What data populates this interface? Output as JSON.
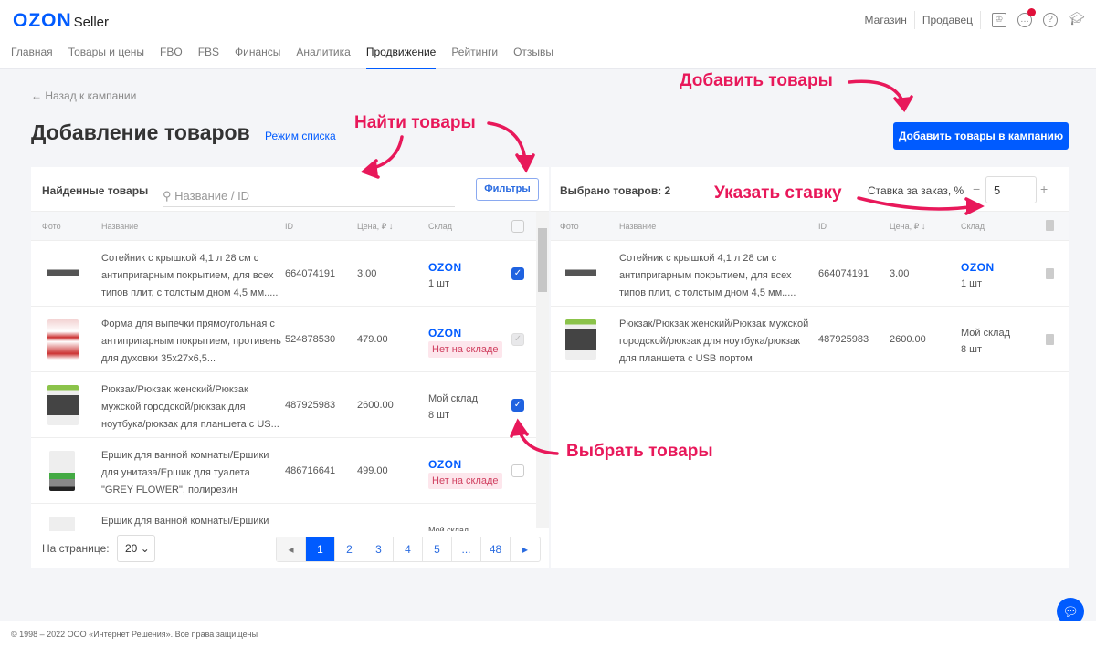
{
  "header": {
    "logo": "OZON",
    "logo_sub": "Seller",
    "nav": [
      "Главная",
      "Товары и цены",
      "FBO",
      "FBS",
      "Финансы",
      "Аналитика",
      "Продвижение",
      "Рейтинги",
      "Отзывы"
    ],
    "active_nav": "Продвижение",
    "links": [
      "Магазин",
      "Продавец"
    ],
    "icons": [
      "crown-icon",
      "chat-icon",
      "help-icon",
      "graduation-cap-icon"
    ]
  },
  "page": {
    "back": "← Назад к кампании",
    "title": "Добавление товаров",
    "mode": "Режим списка",
    "add_button": "Добавить товары в кампанию"
  },
  "annotations": {
    "add": "Добавить товары",
    "find": "Найти товары",
    "rate": "Указать ставку",
    "select": "Выбрать товары",
    "color": "#e8185a"
  },
  "left": {
    "title": "Найденные товары",
    "search_placeholder": "Название / ID",
    "filters": "Фильтры",
    "columns": [
      "Фото",
      "Название",
      "ID",
      "Цена, ₽ ↓",
      "Склад"
    ],
    "rows": [
      {
        "name": "Сотейник с крышкой 4,1 л 28 см с антипригарным покрытием, для всех типов плит, с толстым дном 4,5 мм.....",
        "id": "664074191",
        "price": "3.00",
        "wh": "OZON",
        "stock": "1 шт",
        "checked": true
      },
      {
        "name": "Форма для выпечки прямоугольная с антипригарным покрытием, противень для духовки 35x27x6,5...",
        "id": "524878530",
        "price": "479.00",
        "wh": "OZON",
        "stock": "Нет на складе",
        "checked": "disabled"
      },
      {
        "name": "Рюкзак/Рюкзак женский/Рюкзак мужской городской/рюкзак для ноутбука/рюкзак для планшета с US...",
        "id": "487925983",
        "price": "2600.00",
        "wh": "Мой склад",
        "stock": "8 шт",
        "checked": true
      },
      {
        "name": "Ершик для ванной комнаты/Ершики для унитаза/Ершик для туалета \"GREY FLOWER\", полирезин",
        "id": "486716641",
        "price": "499.00",
        "wh": "OZON",
        "stock": "Нет на складе",
        "checked": false
      },
      {
        "name": "Ершик для ванной комнаты/Ершики",
        "wh": "Мой склад"
      }
    ],
    "per_page_label": "На странице:",
    "per_page": "20",
    "pages": [
      "1",
      "2",
      "3",
      "4",
      "5",
      "...",
      "48"
    ],
    "current_page": "1"
  },
  "right": {
    "title": "Выбрано товаров: 2",
    "rate_label": "Ставка за заказ, %",
    "rate_value": "5",
    "columns": [
      "Фото",
      "Название",
      "ID",
      "Цена, ₽ ↓",
      "Склад"
    ],
    "rows": [
      {
        "name": "Сотейник с крышкой 4,1 л 28 см с антипригарным покрытием, для всех типов плит, с толстым дном 4,5 мм.....",
        "id": "664074191",
        "price": "3.00",
        "wh": "OZON",
        "stock": "1 шт"
      },
      {
        "name": "Рюкзак/Рюкзак женский/Рюкзак мужской городской/рюкзак для ноутбука/рюкзак для планшета с USB портом",
        "id": "487925983",
        "price": "2600.00",
        "wh": "Мой склад",
        "stock": "8 шт"
      }
    ]
  },
  "footer": "© 1998 – 2022 ООО «Интернет Решения». Все права защищены"
}
